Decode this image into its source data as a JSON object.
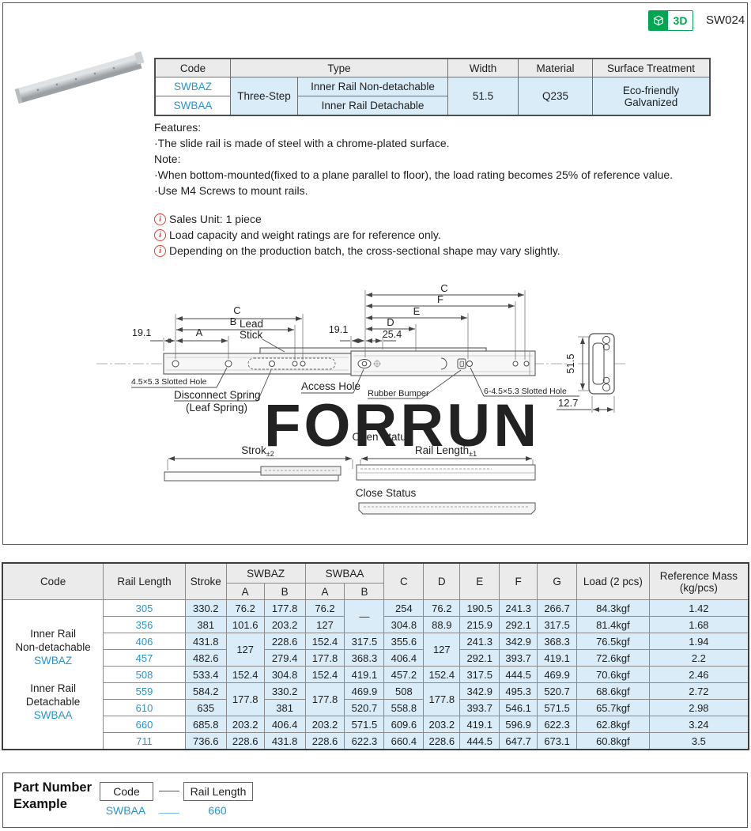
{
  "header": {
    "model": "SW024",
    "badge": "3D"
  },
  "colors": {
    "accent_blue": "#2596d2",
    "green": "#00a551",
    "cell_bg": "#d9ecf8",
    "header_bg": "#ebebeb",
    "info_red": "#e23b2e"
  },
  "spec_table": {
    "h": {
      "code": "Code",
      "type": "Type",
      "width": "Width",
      "material": "Material",
      "surface": "Surface Treatment"
    },
    "code1": "SWBAZ",
    "code2": "SWBAA",
    "type_group": "Three-Step",
    "type1": "Inner Rail Non-detachable",
    "type2": "Inner Rail Detachable",
    "width": "51.5",
    "material": "Q235",
    "surface1": "Eco-friendly",
    "surface2": "Galvanized"
  },
  "features": {
    "title": "Features:",
    "line1": "·The slide rail is made of steel with a chrome-plated surface.",
    "note_title": "Note:",
    "note1": "·When bottom-mounted(fixed to a plane parallel to floor), the load rating becomes 25% of reference value.",
    "note2": "·Use M4  Screws to mount rails."
  },
  "info_notes": [
    "Sales Unit: 1 piece",
    "Load capacity and weight ratings are for reference only.",
    "Depending on the production batch, the cross-sectional shape may vary slightly."
  ],
  "diagram": {
    "watermark": "FORRUN",
    "dim_19_1_left": "19.1",
    "dim_a": "A",
    "dim_b": "B",
    "dim_c": "C",
    "lead_line1": "Lead",
    "lead_line2": "Stick",
    "slotted_hole_left": "4.5×5.3 Slotted Hole",
    "disconnect_spring": "Disconnect Spring",
    "leaf_spring": "(Leaf Spring)",
    "access_hole": "Access Hole",
    "dim_19_1_right": "19.1",
    "dim_25_4": "25.4",
    "dim_d": "D",
    "dim_e": "E",
    "dim_f": "F",
    "rubber_bumper": "Rubber Bumper",
    "slotted_hole_right": "6-4.5×5.3 Slotted Hole",
    "dim_51_5": "51.5",
    "dim_12_7": "12.7",
    "open_status": "Open Status",
    "stroke_label": "Strok",
    "stroke_tol": "±2",
    "rail_length_label": "Rail Length",
    "rail_length_tol": "±1",
    "close_status": "Close Status"
  },
  "main_table": {
    "h": {
      "code": "Code",
      "rail_length": "Rail Length",
      "stroke": "Stroke",
      "swbaz": "SWBAZ",
      "swbaa": "SWBAA",
      "a": "A",
      "b": "B",
      "c": "C",
      "d": "D",
      "e": "E",
      "f": "F",
      "g": "G",
      "load": "Load (2 pcs)",
      "ref_mass_1": "Reference Mass",
      "ref_mass_2": "(kg/pcs)"
    },
    "rows": [
      [
        {
          "rs": 9,
          "c": "code-cell",
          "lines": [
            {
              "t": "Inner Rail"
            },
            {
              "t": "Non-detachable"
            },
            {
              "t": "SWBAZ",
              "c": "bl"
            },
            {
              "t": "",
              "c": "gap"
            },
            {
              "t": "Inner Rail"
            },
            {
              "t": "Detachable"
            },
            {
              "t": "SWBAA",
              "c": "bl"
            }
          ]
        },
        {
          "t": "305",
          "c": "rl"
        },
        "330.2",
        "76.2",
        "177.8",
        "76.2",
        {
          "t": "—",
          "rs": 2
        },
        "254",
        "76.2",
        "190.5",
        "241.3",
        "266.7",
        "84.3kgf",
        "1.42"
      ],
      [
        {
          "t": "356",
          "c": "rl"
        },
        "381",
        "101.6",
        "203.2",
        "127",
        "304.8",
        "88.9",
        "215.9",
        "292.1",
        "317.5",
        "81.4kgf",
        "1.68"
      ],
      [
        {
          "t": "406",
          "c": "rl"
        },
        "431.8",
        {
          "t": "127",
          "rs": 2
        },
        "228.6",
        "152.4",
        "317.5",
        "355.6",
        {
          "t": "127",
          "rs": 2
        },
        "241.3",
        "342.9",
        "368.3",
        "76.5kgf",
        "1.94"
      ],
      [
        {
          "t": "457",
          "c": "rl"
        },
        "482.6",
        "279.4",
        "177.8",
        "368.3",
        "406.4",
        "292.1",
        "393.7",
        "419.1",
        "72.6kgf",
        "2.2"
      ],
      [
        {
          "t": "508",
          "c": "rl"
        },
        "533.4",
        "152.4",
        "304.8",
        "152.4",
        "419.1",
        "457.2",
        "152.4",
        "317.5",
        "444.5",
        "469.9",
        "70.6kgf",
        "2.46"
      ],
      [
        {
          "t": "559",
          "c": "rl"
        },
        "584.2",
        {
          "t": "177.8",
          "rs": 2
        },
        "330.2",
        {
          "t": "177.8",
          "rs": 2
        },
        "469.9",
        "508",
        {
          "t": "177.8",
          "rs": 2
        },
        "342.9",
        "495.3",
        "520.7",
        "68.6kgf",
        "2.72"
      ],
      [
        {
          "t": "610",
          "c": "rl"
        },
        "635",
        "381",
        "520.7",
        "558.8",
        "393.7",
        "546.1",
        "571.5",
        "65.7kgf",
        "2.98"
      ],
      [
        {
          "t": "660",
          "c": "rl"
        },
        "685.8",
        "203.2",
        "406.4",
        "203.2",
        "571.5",
        "609.6",
        "203.2",
        "419.1",
        "596.9",
        "622.3",
        "62.8kgf",
        "3.24"
      ],
      [
        {
          "t": "711",
          "c": "rl"
        },
        "736.6",
        "228.6",
        "431.8",
        "228.6",
        "622.3",
        "660.4",
        "228.6",
        "444.5",
        "647.7",
        "673.1",
        "60.8kgf",
        "3.5"
      ]
    ]
  },
  "part_number": {
    "title1": "Part Number",
    "title2": "Example",
    "box_code": "Code",
    "box_rail": "Rail Length",
    "example_code": "SWBAA",
    "example_rail": "660"
  }
}
